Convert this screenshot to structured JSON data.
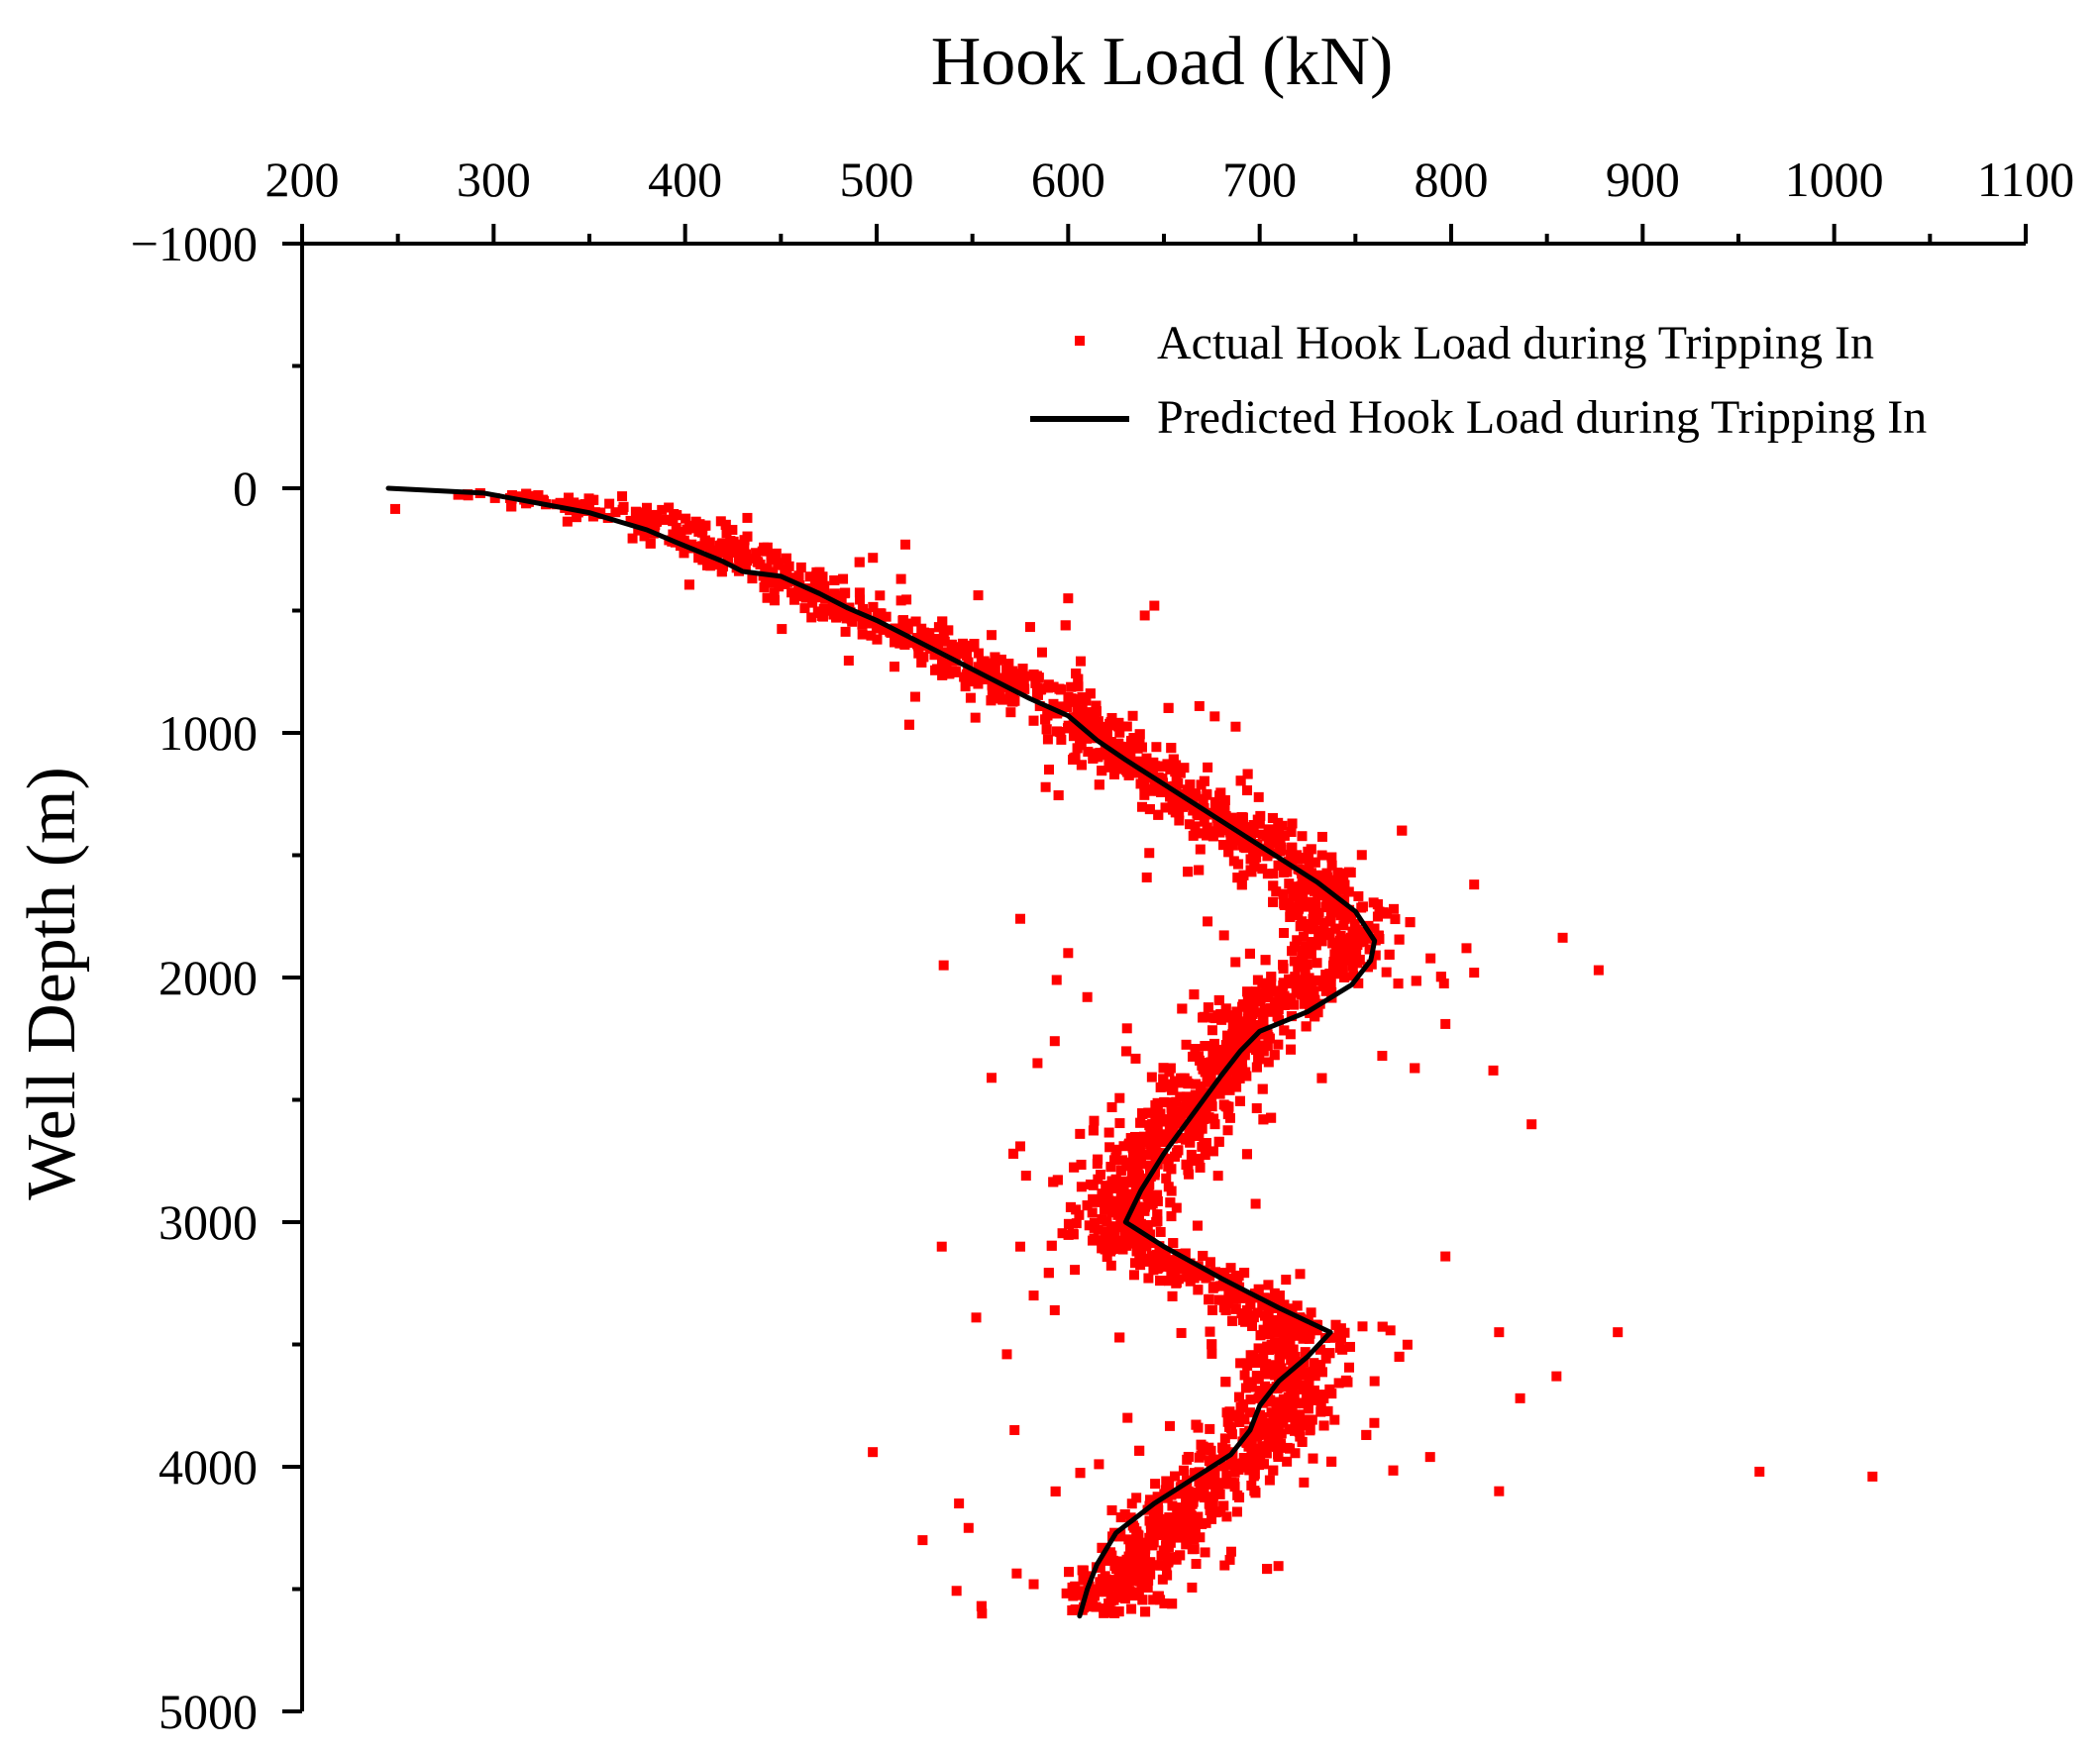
{
  "chart_data": {
    "type": "scatter",
    "title": "",
    "xlabel": "Hook Load (kN)",
    "ylabel": "Well Depth (m)",
    "x_axis_position": "top",
    "y_inverted": true,
    "xlim": [
      200,
      1100
    ],
    "ylim": [
      -1000,
      5000
    ],
    "x_ticks": [
      200,
      300,
      400,
      500,
      600,
      700,
      800,
      900,
      1000,
      1100
    ],
    "x_tick_labels": [
      "200",
      "300",
      "400",
      "500",
      "600",
      "700",
      "800",
      "900",
      "1000",
      "1100"
    ],
    "y_ticks": [
      -1000,
      0,
      1000,
      2000,
      3000,
      4000,
      5000
    ],
    "y_tick_labels": [
      "−1000",
      "0",
      "1000",
      "2000",
      "3000",
      "4000",
      "5000"
    ],
    "legend": {
      "position": "top-right",
      "entries": [
        "Actual Hook Load during Tripping In",
        "Predicted Hook Load during Tripping In"
      ]
    },
    "series": [
      {
        "name": "Actual Hook Load during Tripping In",
        "kind": "scatter",
        "color": "#ff0000",
        "marker": "square",
        "trend": [
          [
            300,
            20
          ],
          [
            330,
            40
          ],
          [
            360,
            90
          ],
          [
            390,
            140
          ],
          [
            420,
            250
          ],
          [
            450,
            360
          ],
          [
            490,
            520
          ],
          [
            530,
            640
          ],
          [
            570,
            780
          ],
          [
            600,
            900
          ],
          [
            630,
            1110
          ],
          [
            665,
            1290
          ],
          [
            700,
            1450
          ],
          [
            730,
            1640
          ],
          [
            745,
            1830
          ],
          [
            730,
            2000
          ],
          [
            700,
            2140
          ],
          [
            680,
            2350
          ],
          [
            660,
            2580
          ],
          [
            640,
            2780
          ],
          [
            625,
            2980
          ],
          [
            630,
            3100
          ],
          [
            680,
            3250
          ],
          [
            720,
            3450
          ],
          [
            715,
            3650
          ],
          [
            700,
            3900
          ],
          [
            670,
            4100
          ],
          [
            650,
            4300
          ],
          [
            630,
            4450
          ],
          [
            620,
            4600
          ]
        ],
        "spread_sd": 14,
        "n_core": 3800,
        "outliers": [
          [
            515,
            230
          ],
          [
            380,
            80
          ],
          [
            600,
            450
          ],
          [
            640,
            520
          ],
          [
            590,
            1150
          ],
          [
            535,
            1950
          ],
          [
            575,
            1760
          ],
          [
            594,
            2010
          ],
          [
            593,
            2260
          ],
          [
            560,
            2410
          ],
          [
            575,
            2690
          ],
          [
            578,
            2810
          ],
          [
            534,
            3100
          ],
          [
            582,
            3300
          ],
          [
            552,
            3390
          ],
          [
            568,
            3540
          ],
          [
            572,
            3850
          ],
          [
            498,
            3940
          ],
          [
            543,
            4150
          ],
          [
            548,
            4250
          ],
          [
            524,
            4300
          ],
          [
            582,
            4480
          ],
          [
            555,
            4600
          ],
          [
            961,
            4020
          ],
          [
            1020,
            4040
          ],
          [
            877,
            1970
          ],
          [
            887,
            3450
          ],
          [
            855,
            3630
          ],
          [
            825,
            4100
          ],
          [
            822,
            2380
          ],
          [
            842,
            2600
          ],
          [
            789,
            3960
          ],
          [
            797,
            3140
          ],
          [
            836,
            3720
          ],
          [
            825,
            3450
          ],
          [
            797,
            2190
          ],
          [
            812,
            1620
          ],
          [
            770,
            1720
          ],
          [
            808,
            1880
          ],
          [
            812,
            1980
          ],
          [
            764,
            2320
          ],
          [
            760,
            3650
          ],
          [
            600,
            1900
          ],
          [
            610,
            2080
          ],
          [
            584,
            2350
          ],
          [
            631,
            3800
          ],
          [
            575,
            3100
          ],
          [
            593,
            3360
          ],
          [
            645,
            480
          ],
          [
            560,
            600
          ]
        ]
      },
      {
        "name": "Predicted Hook Load during Tripping In",
        "kind": "line",
        "color": "#000000",
        "points": [
          [
            245,
            0
          ],
          [
            295,
            20
          ],
          [
            350,
            100
          ],
          [
            380,
            170
          ],
          [
            395,
            220
          ],
          [
            420,
            300
          ],
          [
            430,
            340
          ],
          [
            450,
            360
          ],
          [
            470,
            430
          ],
          [
            485,
            490
          ],
          [
            500,
            540
          ],
          [
            520,
            620
          ],
          [
            540,
            700
          ],
          [
            560,
            780
          ],
          [
            580,
            860
          ],
          [
            600,
            930
          ],
          [
            615,
            1030
          ],
          [
            630,
            1110
          ],
          [
            650,
            1210
          ],
          [
            670,
            1310
          ],
          [
            690,
            1410
          ],
          [
            710,
            1510
          ],
          [
            730,
            1610
          ],
          [
            750,
            1730
          ],
          [
            760,
            1850
          ],
          [
            758,
            1930
          ],
          [
            748,
            2030
          ],
          [
            725,
            2140
          ],
          [
            700,
            2220
          ],
          [
            690,
            2300
          ],
          [
            680,
            2400
          ],
          [
            665,
            2560
          ],
          [
            650,
            2720
          ],
          [
            638,
            2870
          ],
          [
            630,
            3000
          ],
          [
            650,
            3100
          ],
          [
            680,
            3230
          ],
          [
            710,
            3350
          ],
          [
            737,
            3450
          ],
          [
            725,
            3550
          ],
          [
            710,
            3650
          ],
          [
            700,
            3750
          ],
          [
            695,
            3850
          ],
          [
            685,
            3950
          ],
          [
            665,
            4050
          ],
          [
            645,
            4150
          ],
          [
            625,
            4270
          ],
          [
            615,
            4400
          ],
          [
            610,
            4500
          ],
          [
            606,
            4610
          ]
        ]
      }
    ]
  }
}
